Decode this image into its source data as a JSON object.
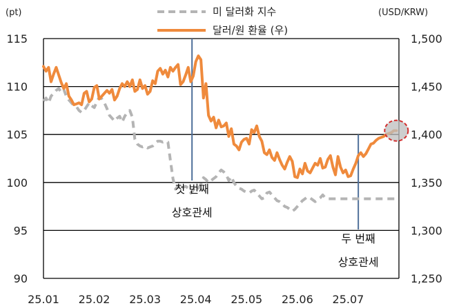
{
  "chart_data": {
    "type": "line",
    "left_unit": "(pt)",
    "right_unit": "(USD/KRW)",
    "left_ylim": [
      90,
      115
    ],
    "right_ylim": [
      1250,
      1500
    ],
    "left_ticks": [
      "90",
      "95",
      "100",
      "105",
      "110",
      "115"
    ],
    "right_ticks": [
      "1,250",
      "1,300",
      "1,350",
      "1,400",
      "1,450",
      "1,500"
    ],
    "x_ticks": [
      "25.01",
      "25.02",
      "25.03",
      "25.04",
      "25.05",
      "25.06",
      "25.07"
    ],
    "grid": "horizontal",
    "legend_position": "top-center",
    "series": [
      {
        "name": "미 달러화 지수",
        "axis": "left",
        "style": "dashed",
        "color": "#b4b4b4",
        "x": [
          0,
          1,
          2,
          3,
          4,
          5,
          6,
          7,
          8,
          9,
          10,
          11,
          12,
          13,
          14,
          15,
          16,
          17,
          18,
          19,
          20,
          21,
          22,
          23,
          24,
          25,
          26,
          27,
          28,
          29,
          30,
          31,
          32,
          33,
          34,
          35,
          36,
          37,
          38,
          39,
          40,
          41,
          42,
          43,
          44,
          45,
          46,
          47,
          48,
          49,
          50,
          51,
          52,
          53,
          54,
          55,
          56,
          57,
          58,
          59,
          60,
          61,
          62,
          63,
          64,
          65,
          66,
          67,
          68,
          69,
          70,
          71,
          72,
          73,
          74,
          75,
          76,
          77,
          78,
          79,
          80,
          81,
          82,
          83,
          84,
          85,
          86,
          87,
          88,
          89,
          90,
          91,
          92,
          93,
          94,
          95,
          96,
          97,
          98,
          99,
          100,
          101,
          102,
          103,
          104,
          105,
          106,
          107,
          108,
          109,
          110,
          111,
          112,
          113,
          114,
          115,
          116,
          117,
          118,
          119,
          120,
          121,
          122,
          123,
          124,
          125,
          126,
          127,
          128,
          129,
          130,
          131,
          132,
          133,
          134,
          135,
          136,
          137,
          138,
          139
        ],
        "values": [
          108.5,
          108.8,
          108.3,
          109.0,
          109.3,
          109.6,
          109.8,
          109.4,
          109.7,
          109.0,
          108.6,
          108.3,
          108.0,
          107.9,
          107.5,
          107.3,
          107.5,
          107.9,
          108.3,
          108.0,
          107.8,
          108.4,
          108.9,
          108.7,
          108.3,
          107.7,
          107.0,
          106.7,
          106.4,
          106.7,
          106.9,
          106.3,
          106.9,
          107.3,
          107.5,
          106.8,
          104.5,
          104.0,
          103.8,
          103.7,
          103.8,
          103.6,
          103.7,
          103.8,
          104.1,
          104.3,
          104.3,
          104.2,
          104.3,
          104.2,
          102.3,
          100.4,
          99.3,
          99.6,
          99.2,
          99.5,
          99.6,
          99.4,
          98.9,
          99.2,
          99.6,
          99.4,
          99.8,
          100.5,
          100.3,
          100.0,
          100.2,
          100.4,
          100.6,
          101.0,
          101.3,
          101.1,
          100.8,
          100.2,
          100.6,
          100.0,
          99.6,
          99.4,
          99.3,
          99.1,
          99.0,
          98.9,
          99.1,
          99.2,
          98.9,
          98.6,
          98.3,
          98.4,
          98.9,
          99.0,
          98.7,
          98.4,
          98.1,
          98.0,
          97.8,
          97.5,
          97.4,
          97.2,
          97.0,
          97.2,
          97.5,
          97.8,
          98.1,
          98.3,
          98.5,
          98.4,
          98.2,
          98.0,
          98.2,
          98.4,
          98.7,
          98.4,
          98.3,
          98.3,
          98.3,
          98.3,
          98.3,
          98.3,
          98.3,
          98.3,
          98.3,
          98.3,
          98.3,
          98.3,
          98.3,
          98.3,
          98.3,
          98.3,
          98.3,
          98.3,
          98.3,
          98.3,
          98.3,
          98.3,
          98.3,
          98.3,
          98.3,
          98.3,
          98.3,
          98.3
        ]
      },
      {
        "name": "달러/원 환율 (우)",
        "axis": "right",
        "style": "solid",
        "color": "#ef8a3c",
        "x": [
          0,
          1,
          2,
          3,
          4,
          5,
          6,
          7,
          8,
          9,
          10,
          11,
          12,
          13,
          14,
          15,
          16,
          17,
          18,
          19,
          20,
          21,
          22,
          23,
          24,
          25,
          26,
          27,
          28,
          29,
          30,
          31,
          32,
          33,
          34,
          35,
          36,
          37,
          38,
          39,
          40,
          41,
          42,
          43,
          44,
          45,
          46,
          47,
          48,
          49,
          50,
          51,
          52,
          53,
          54,
          55,
          56,
          57,
          58,
          59,
          60,
          61,
          62,
          63,
          64,
          65,
          66,
          67,
          68,
          69,
          70,
          71,
          72,
          73,
          74,
          75,
          76,
          77,
          78,
          79,
          80,
          81,
          82,
          83,
          84,
          85,
          86,
          87,
          88,
          89,
          90,
          91,
          92,
          93,
          94,
          95,
          96,
          97,
          98,
          99,
          100,
          101,
          102,
          103,
          104,
          105,
          106,
          107,
          108,
          109,
          110,
          111,
          112,
          113,
          114,
          115,
          116,
          117,
          118,
          119,
          120,
          121,
          122,
          123,
          124,
          125,
          126,
          127,
          128,
          129,
          130,
          131,
          132,
          133,
          134,
          135,
          136,
          137,
          138,
          139
        ],
        "values": [
          1471,
          1466,
          1470,
          1455,
          1463,
          1470,
          1462,
          1454,
          1448,
          1453,
          1440,
          1436,
          1431,
          1432,
          1433,
          1431,
          1443,
          1445,
          1434,
          1437,
          1449,
          1451,
          1437,
          1440,
          1443,
          1446,
          1443,
          1447,
          1436,
          1440,
          1448,
          1453,
          1450,
          1455,
          1450,
          1457,
          1445,
          1447,
          1457,
          1448,
          1451,
          1442,
          1445,
          1456,
          1453,
          1466,
          1469,
          1463,
          1467,
          1460,
          1470,
          1466,
          1470,
          1473,
          1452,
          1455,
          1462,
          1470,
          1455,
          1461,
          1476,
          1482,
          1478,
          1438,
          1453,
          1420,
          1414,
          1418,
          1407,
          1415,
          1408,
          1409,
          1412,
          1398,
          1406,
          1390,
          1388,
          1384,
          1392,
          1395,
          1396,
          1390,
          1405,
          1402,
          1409,
          1398,
          1393,
          1381,
          1379,
          1384,
          1376,
          1373,
          1381,
          1374,
          1368,
          1364,
          1371,
          1377,
          1372,
          1356,
          1355,
          1364,
          1359,
          1370,
          1362,
          1360,
          1365,
          1370,
          1368,
          1375,
          1365,
          1366,
          1374,
          1378,
          1366,
          1358,
          1377,
          1366,
          1360,
          1363,
          1356,
          1357,
          1364,
          1370,
          1378,
          1381,
          1377,
          1380,
          1385,
          1390,
          1391,
          1394,
          1396,
          1397,
          1398,
          1400,
          1401,
          1402,
          1404,
          1404
        ]
      }
    ],
    "annotations": [
      {
        "x": 58.5,
        "label_lines": [
          "첫 번째",
          "상호관세"
        ]
      },
      {
        "x": 124,
        "label_lines": [
          "두 번째",
          "상호관세"
        ]
      }
    ],
    "highlight": {
      "x": 139,
      "y": 1404
    }
  }
}
